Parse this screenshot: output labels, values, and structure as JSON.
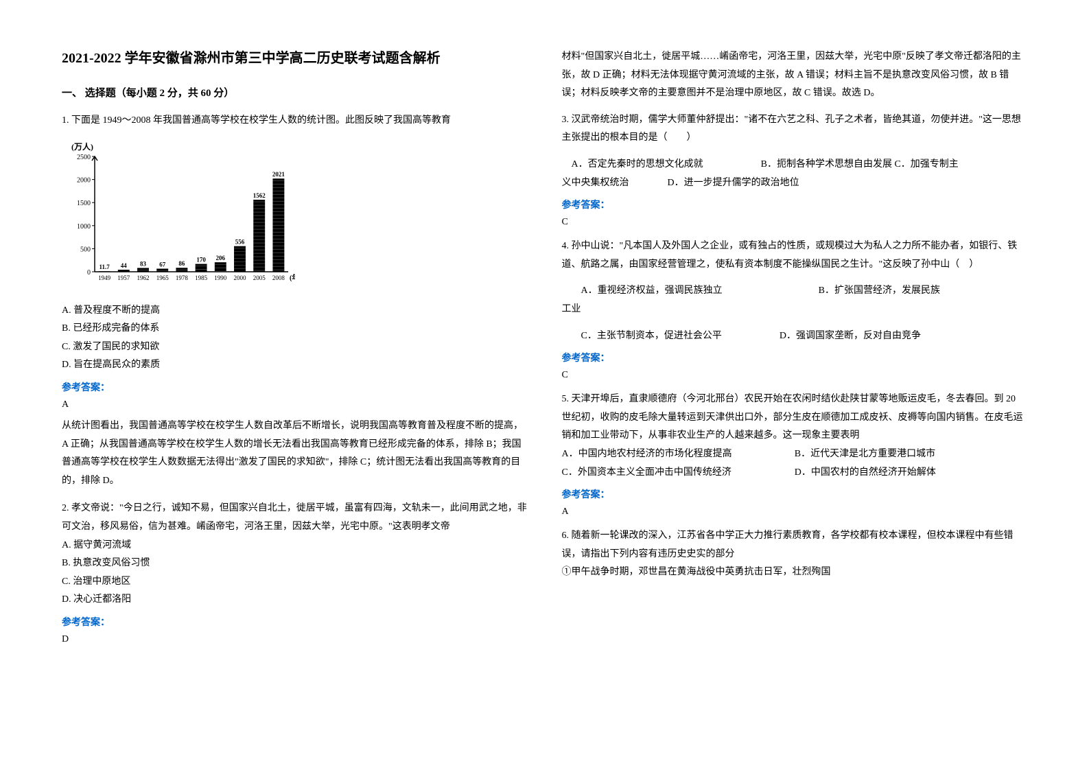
{
  "title": "2021-2022 学年安徽省滁州市第三中学高二历史联考试题含解析",
  "section_header": "一、 选择题（每小题 2 分，共 60 分）",
  "q1": {
    "text": "1. 下面是 1949～2008 年我国普通高等学校在校学生人数的统计图。此图反映了我国高等教育",
    "opt_a": "A. 普及程度不断的提高",
    "opt_b": "B. 已经形成完备的体系",
    "opt_c": "C. 激发了国民的求知欲",
    "opt_d": "D. 旨在提高民众的素质",
    "answer_label": "参考答案：",
    "answer": "A",
    "explanation": "从统计图看出，我国普通高等学校在校学生人数自改革后不断增长，说明我国高等教育普及程度不断的提高，A 正确；从我国普通高等学校在校学生人数的增长无法看出我国高等教育已经形成完备的体系，排除 B；我国普通高等学校在校学生人数数据无法得出\"激发了国民的求知欲\"，排除 C；统计图无法看出我国高等教育的目的，排除 D。"
  },
  "q2": {
    "text": "2. 孝文帝说：\"今日之行，诚知不易，但国家兴自北土，徙居平城，虽富有四海，文轨未一，此间用武之地，非可文治，移风易俗，信为甚难。崤函帝宅，河洛王里，因兹大举，光宅中原。\"这表明孝文帝",
    "opt_a": "A. 据守黄河流域",
    "opt_b": "B. 执意改变风俗习惯",
    "opt_c": "C. 治理中原地区",
    "opt_d": "D. 决心迁都洛阳",
    "answer_label": "参考答案：",
    "answer": "D",
    "explanation": "材料\"但国家兴自北土，徙居平城……崤函帝宅，河洛王里，因兹大举，光宅中原\"反映了孝文帝迁都洛阳的主张，故 D 正确；材料无法体现据守黄河流域的主张，故 A 错误；材料主旨不是执意改变风俗习惯，故 B 错误；材料反映孝文帝的主要意图并不是治理中原地区，故 C 错误。故选 D。"
  },
  "q3": {
    "text": "3. 汉武帝统治时期，儒学大师董仲舒提出：\"诸不在六艺之科、孔子之术者，皆绝其道，勿使并进。\"这一思想主张提出的根本目的是（　　）",
    "opts_line1": "　A．否定先秦时的思想文化成就　　　　　　B．扼制各种学术思想自由发展 C．加强专制主",
    "opts_line2": "义中央集权统治　　　　D．进一步提升儒学的政治地位",
    "answer_label": "参考答案：",
    "answer": "C"
  },
  "q4": {
    "text": "4. 孙中山说：\"凡本国人及外国人之企业，或有独占的性质，或规模过大为私人之力所不能办者，如银行、铁道、航路之属，由国家经营管理之，使私有资本制度不能操纵国民之生计。\"这反映了孙中山（　）",
    "opts_line1": "　　A．重视经济权益，强调民族独立　　　　　　　　　　B．扩张国营经济，发展民族",
    "opts_line1b": "工业",
    "opts_line2": "　　C．主张节制资本，促进社会公平　　　　　　D．强调国家垄断，反对自由竞争",
    "answer_label": "参考答案：",
    "answer": "C"
  },
  "q5": {
    "text": "5. 天津开埠后，直隶顺德府（今河北邢台）农民开始在农闲时结伙赴陕甘蒙等地贩运皮毛，冬去春回。到 20 世纪初，收购的皮毛除大量转运到天津供出口外，部分生皮在顺德加工成皮袄、皮褥等向国内销售。在皮毛运销和加工业带动下，从事非农业生产的人越来越多。这一现象主要表明",
    "opt_a": "A．中国内地农村经济的市场化程度提高",
    "opt_b": "B．近代天津是北方重要港口城市",
    "opt_c": "C．外国资本主义全面冲击中国传统经济",
    "opt_d": "D．中国农村的自然经济开始解体",
    "answer_label": "参考答案：",
    "answer": "A"
  },
  "q6": {
    "text": "6. 随着新一轮课改的深入，江苏省各中学正大力推行素质教育，各学校都有校本课程，但校本课程中有些错误，请指出下列内容有违历史史实的部分",
    "item1": "①甲午战争时期，邓世昌在黄海战役中英勇抗击日军，壮烈殉国"
  },
  "chart": {
    "type": "bar",
    "y_label": "(万人)",
    "x_label": "(年份)",
    "y_max": 2500,
    "y_ticks": [
      0,
      500,
      1000,
      1500,
      2000,
      2500
    ],
    "x_categories": [
      "1949",
      "1957",
      "1962",
      "1965",
      "1978",
      "1985",
      "1990",
      "2000",
      "2005",
      "2008"
    ],
    "values": [
      11.7,
      44,
      83,
      67,
      86,
      170,
      206,
      556,
      1562,
      2021
    ],
    "bar_labels": [
      "11.7",
      "44",
      "83",
      "67",
      "86",
      "170",
      "206",
      "556",
      "1562",
      "2021"
    ],
    "bar_color": "#000000",
    "text_color": "#000000",
    "axis_color": "#000000",
    "y_label_fontsize": 12,
    "tick_fontsize": 10,
    "bar_label_fontsize": 9
  }
}
